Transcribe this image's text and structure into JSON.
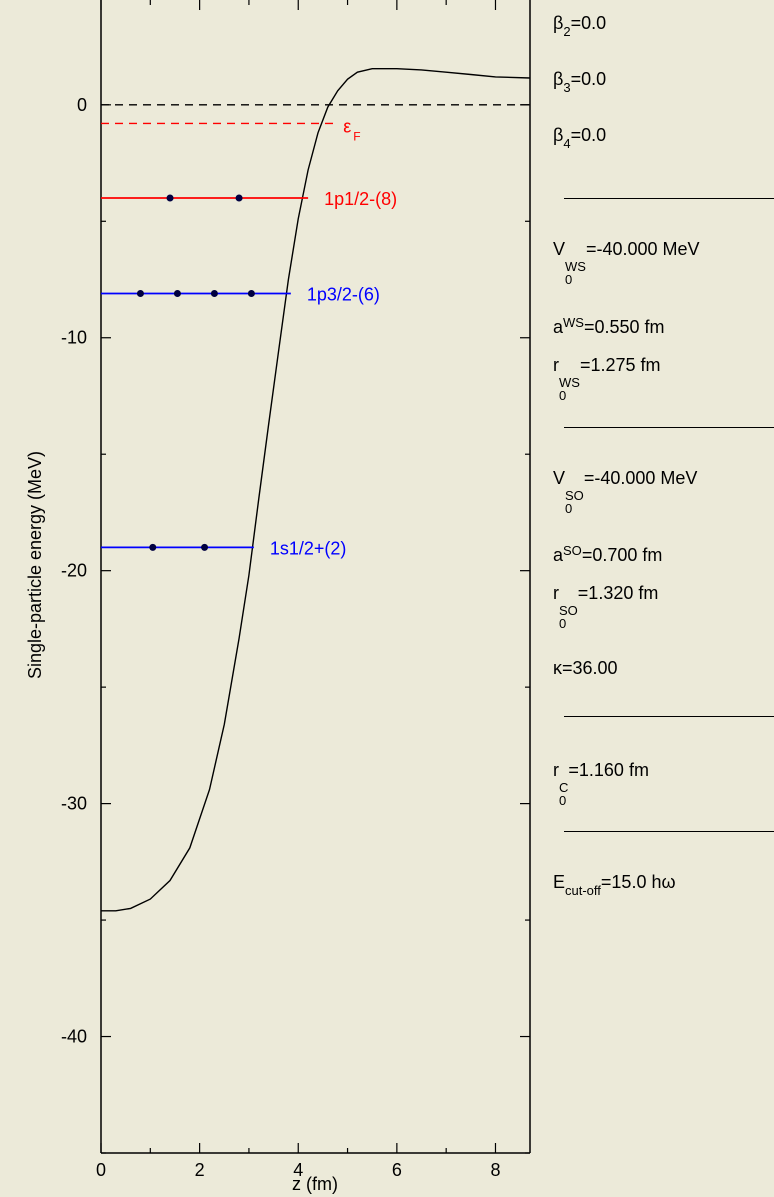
{
  "chart_data": {
    "type": "line",
    "title": "",
    "xlabel": "z (fm)",
    "ylabel": "Single-particle energy (MeV)",
    "xlim": [
      0,
      8.7
    ],
    "ylim": [
      -45,
      4.5
    ],
    "xticks": [
      0,
      2,
      4,
      6,
      8
    ],
    "yticks": [
      0,
      -10,
      -20,
      -30,
      -40
    ],
    "potential": {
      "x": [
        0,
        0.3,
        0.6,
        1.0,
        1.4,
        1.8,
        2.2,
        2.5,
        2.8,
        3.0,
        3.2,
        3.4,
        3.6,
        3.8,
        4.0,
        4.2,
        4.4,
        4.6,
        4.8,
        5.0,
        5.2,
        5.5,
        6.0,
        6.5,
        7.0,
        7.5,
        8.0,
        8.7
      ],
      "y": [
        -34.6,
        -34.6,
        -34.5,
        -34.1,
        -33.3,
        -31.9,
        -29.4,
        -26.6,
        -22.9,
        -20.2,
        -16.9,
        -13.7,
        -10.6,
        -7.5,
        -4.9,
        -2.8,
        -1.2,
        -0.1,
        0.6,
        1.1,
        1.4,
        1.55,
        1.55,
        1.5,
        1.4,
        1.3,
        1.2,
        1.15
      ]
    },
    "zero_line": 0,
    "fermi_energy": -0.8,
    "fermi_label": "ε",
    "fermi_sub": "F",
    "levels": [
      {
        "label": "1p1/2-(8)",
        "energy": -4.0,
        "x_end": 4.2,
        "color": "#ff0000",
        "particles_z": [
          1.4,
          2.8
        ]
      },
      {
        "label": "1p3/2-(6)",
        "energy": -8.1,
        "x_end": 3.85,
        "color": "#0000ff",
        "particles_z": [
          0.8,
          1.55,
          2.3,
          3.05
        ]
      },
      {
        "label": "1s1/2+(2)",
        "energy": -19.0,
        "x_end": 3.1,
        "color": "#0000ff",
        "particles_z": [
          1.05,
          2.1
        ]
      }
    ],
    "grid": false,
    "legend": "none"
  },
  "params": {
    "beta2": {
      "sym": "β",
      "sub": "2",
      "val": "=0.0"
    },
    "beta3": {
      "sym": "β",
      "sub": "3",
      "val": "=0.0"
    },
    "beta4": {
      "sym": "β",
      "sub": "4",
      "val": "=0.0"
    },
    "v0ws": {
      "sym": "V",
      "sup": "WS",
      "sub": "0",
      "val": "=-40.000 MeV"
    },
    "aws": {
      "sym": "a",
      "sup": "WS",
      "val": "=0.550 fm"
    },
    "r0ws": {
      "sym": "r",
      "sup": "WS",
      "sub": "0",
      "val": "=1.275 fm"
    },
    "v0so": {
      "sym": "V",
      "sup": "SO",
      "sub": "0",
      "val": "=-40.000 MeV"
    },
    "aso": {
      "sym": "a",
      "sup": "SO",
      "val": "=0.700 fm"
    },
    "r0so": {
      "sym": "r",
      "sup": "SO",
      "sub": "0",
      "val": "=1.320 fm"
    },
    "kappa": {
      "text": "κ=36.00"
    },
    "r0c": {
      "sym": "r",
      "sup": "C",
      "sub": "0",
      "val": "=1.160 fm"
    },
    "ecut": {
      "sym": "E",
      "sub": "cut-off",
      "val": "=15.0 hω"
    }
  },
  "colors": {
    "background": "#ecead9",
    "occupied": "#0000ff",
    "valence": "#ff0000",
    "particle": "#000040"
  }
}
